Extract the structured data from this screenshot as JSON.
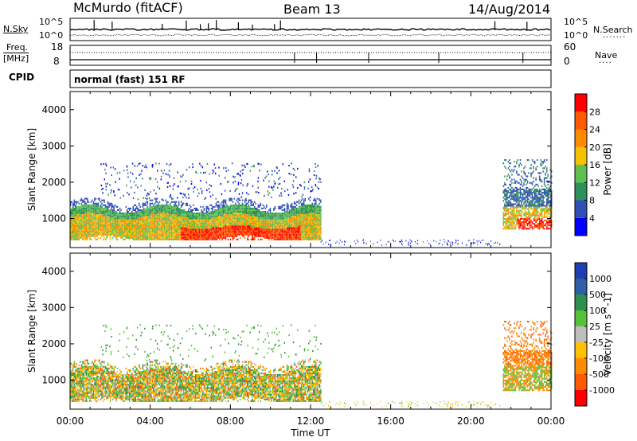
{
  "header": {
    "station": "McMurdo (fitACF)",
    "beam": "Beam 13",
    "date": "14/Aug/2014"
  },
  "noise_panel": {
    "left_label": "N.Sky",
    "right_label": "N.Search",
    "tick_top": "10^5",
    "tick_bottom": "10^0"
  },
  "freq_panel": {
    "left_label": "Freq.",
    "left_unit": "[MHz]",
    "right_label": "Nave",
    "left_ticks": [
      "18",
      "8"
    ],
    "right_ticks": [
      "60",
      "0"
    ]
  },
  "cpid": {
    "label": "CPID",
    "mode": "normal (fast) 151 RF"
  },
  "colors": {
    "power": [
      "#0000ff",
      "#2f4fb6",
      "#2f8f5a",
      "#5fbf4f",
      "#f2c300",
      "#ff8c00",
      "#ff5a00",
      "#ff0000"
    ],
    "velocity": [
      "#ff0000",
      "#ff5a00",
      "#ff8c00",
      "#ffc000",
      "#bebebe",
      "#56c238",
      "#2e8f4f",
      "#2f5fa6",
      "#1f3fb0"
    ]
  },
  "chart_data": [
    {
      "type": "heatmap",
      "title": "",
      "parameter": "Power",
      "ylabel": "Slant Range [km]",
      "y_ticks": [
        1000,
        2000,
        3000,
        4000
      ],
      "ylim": [
        200,
        4500
      ],
      "xlim_hours": [
        0,
        24
      ],
      "colorbar": {
        "label": "Power [dB]",
        "ticks": [
          4,
          8,
          12,
          16,
          20,
          24,
          28
        ],
        "range": [
          0,
          32
        ]
      },
      "echo_regions": [
        {
          "start": "00:00",
          "end": "12:30",
          "range_km": [
            400,
            1450
          ],
          "value": "8-30 dB"
        },
        {
          "start": "01:00",
          "end": "12:30",
          "range_km": [
            1500,
            2600
          ],
          "value": "4-8 dB"
        },
        {
          "start": "21:30",
          "end": "24:00",
          "range_km": [
            700,
            2600
          ],
          "value": "4-28 dB"
        }
      ]
    },
    {
      "type": "heatmap",
      "title": "",
      "parameter": "Velocity",
      "ylabel": "Slant Range [km]",
      "xlabel": "Time UT",
      "y_ticks": [
        1000,
        2000,
        3000,
        4000
      ],
      "ylim": [
        200,
        4500
      ],
      "x_ticks": [
        "00:00",
        "04:00",
        "08:00",
        "12:00",
        "16:00",
        "20:00",
        "00:00"
      ],
      "xlim_hours": [
        0,
        24
      ],
      "colorbar": {
        "label": "Velocity [m s^-1]",
        "ticks": [
          "1000",
          "500",
          "100",
          "25",
          "-25",
          "-100",
          "-500",
          "-1000"
        ]
      },
      "echo_regions": [
        {
          "start": "00:00",
          "end": "12:30",
          "range_km": [
            400,
            1500
          ],
          "value": "-500 to 500 m/s"
        },
        {
          "start": "21:30",
          "end": "24:00",
          "range_km": [
            800,
            2600
          ],
          "value": "-500 to 100 m/s"
        }
      ]
    }
  ]
}
